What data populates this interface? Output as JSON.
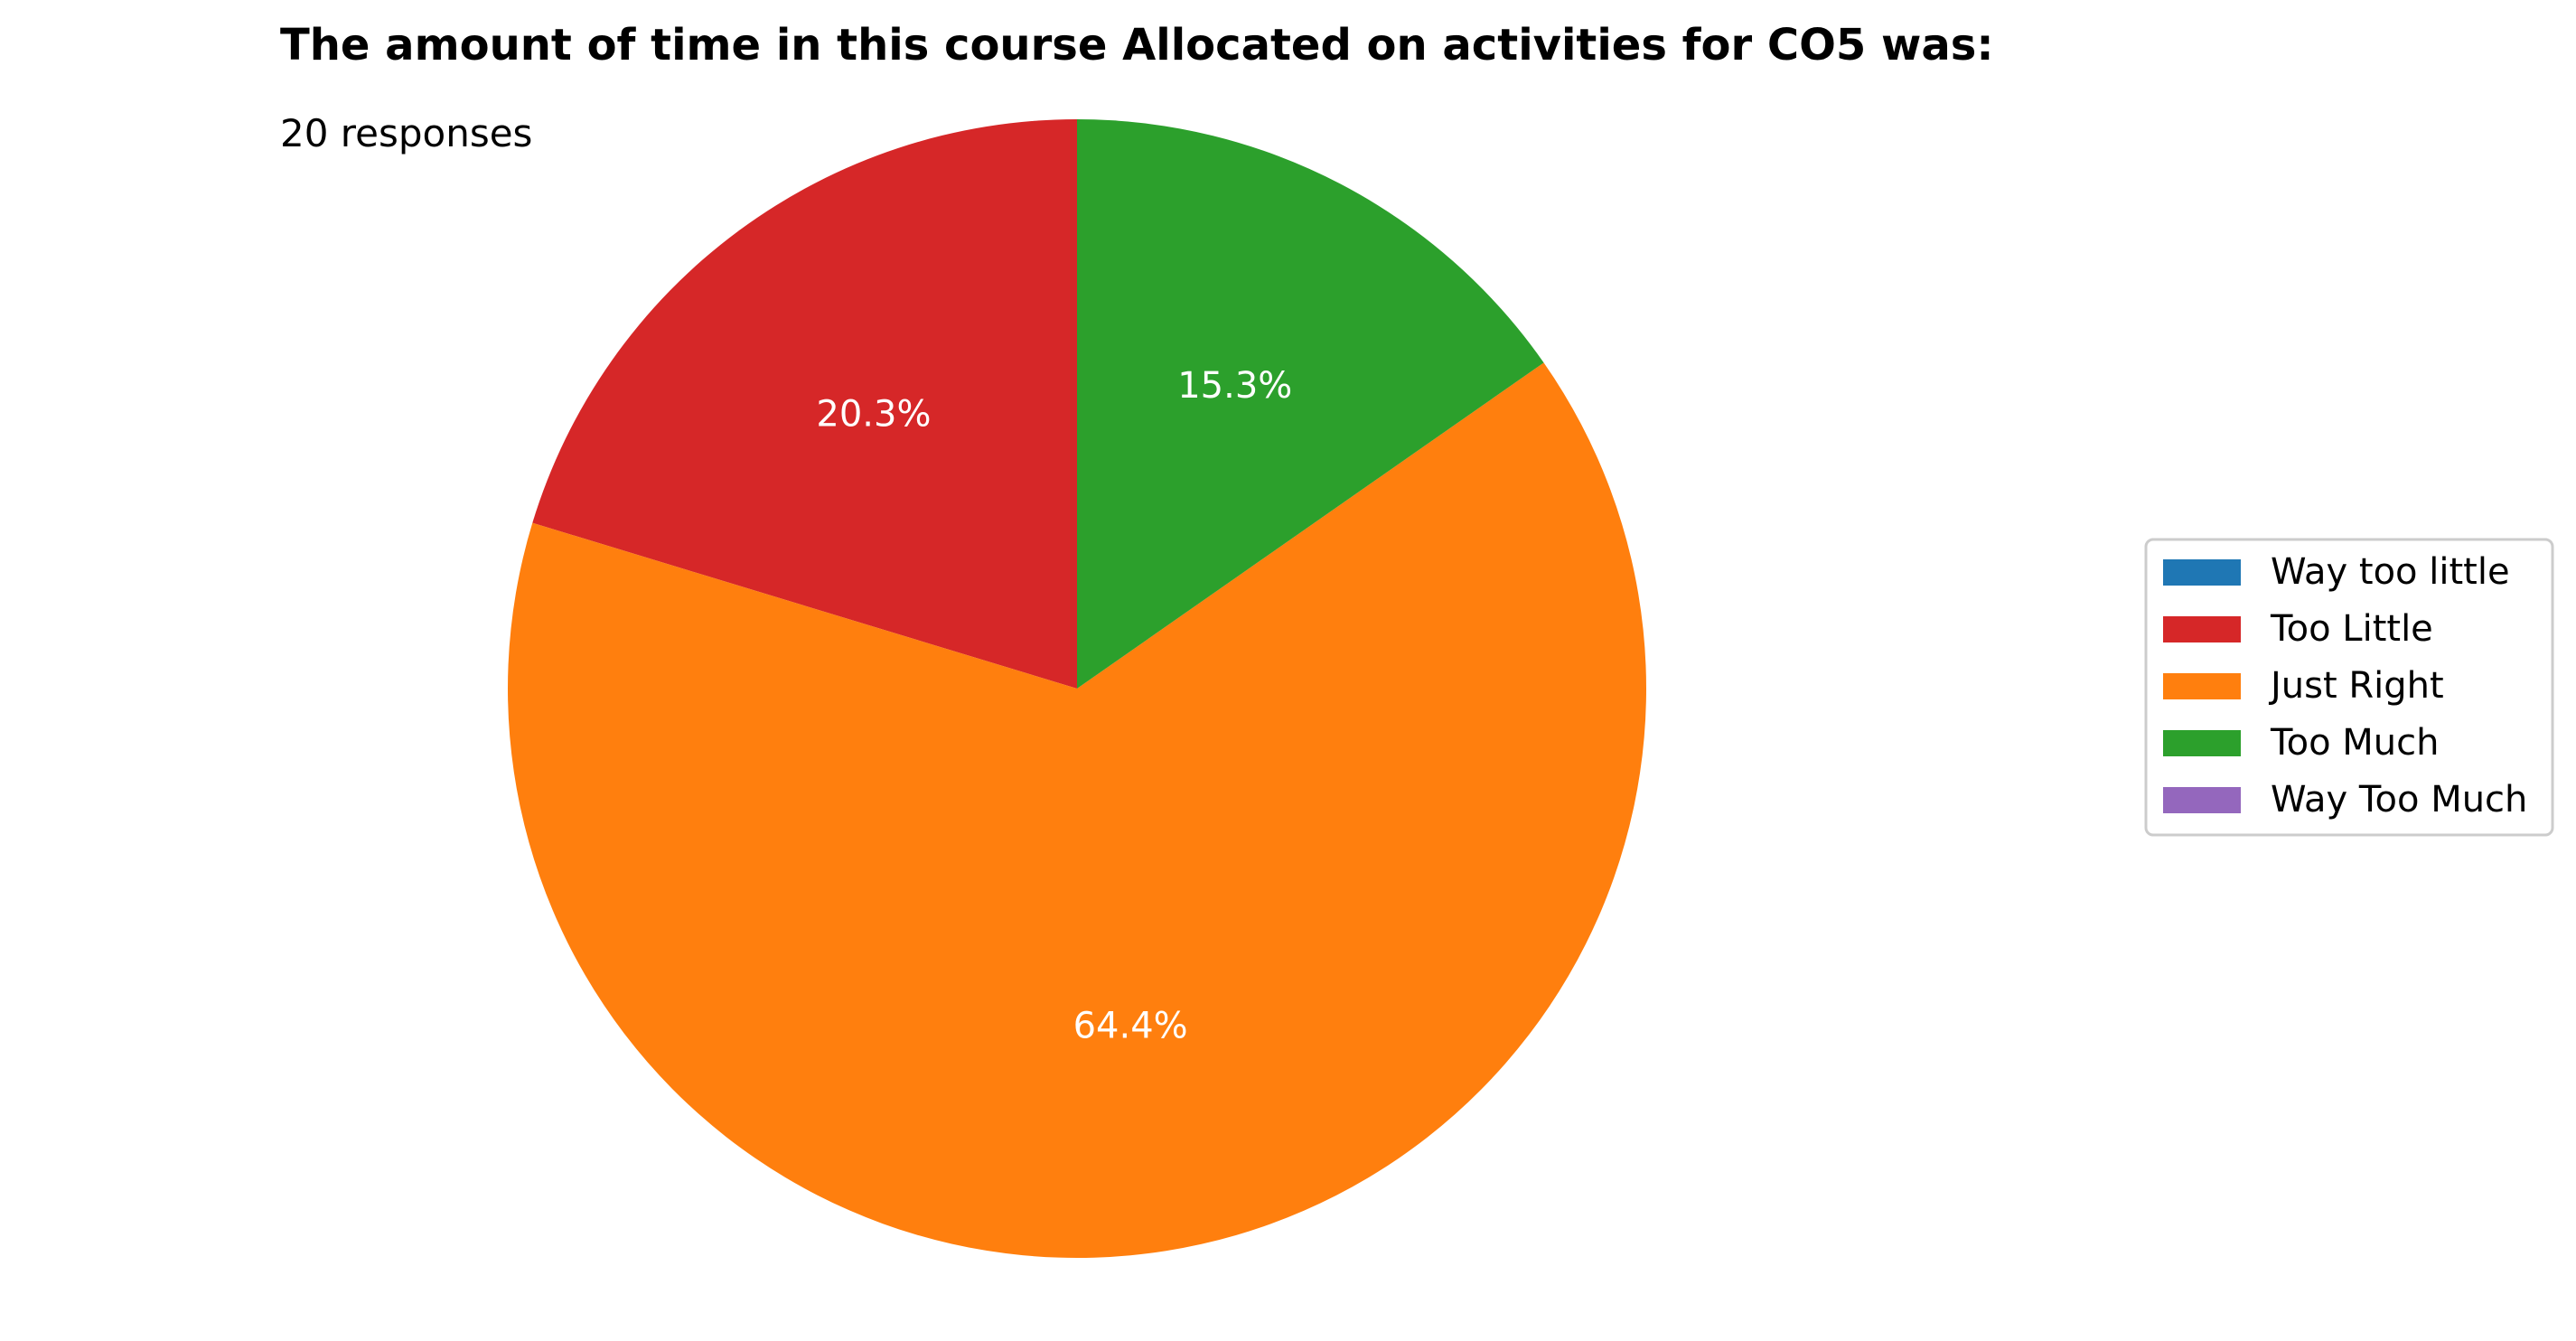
{
  "chart_data": {
    "type": "pie",
    "title": "The amount of time in this course Allocated on activities for CO5 was:",
    "subtitle": "20 responses",
    "categories": [
      "Way too little",
      "Too Little",
      "Just Right",
      "Too Much",
      "Way Too Much"
    ],
    "values": [
      0,
      20.3,
      64.4,
      15.3,
      0
    ],
    "value_labels": [
      "",
      "20.3%",
      "64.4%",
      "15.3%",
      ""
    ],
    "colors": [
      "#1f77b4",
      "#d62728",
      "#ff7f0e",
      "#2ca02c",
      "#9467bd"
    ],
    "start_angle_deg": 90,
    "direction": "counterclockwise",
    "legend_position": "right"
  }
}
